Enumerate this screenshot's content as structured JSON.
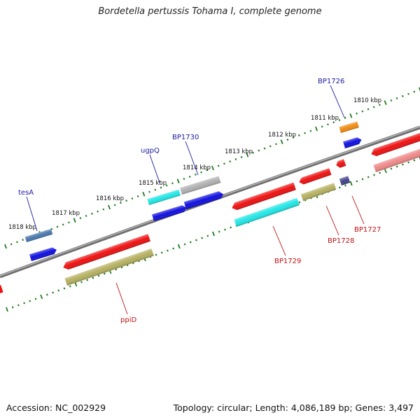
{
  "title": "Bordetella pertussis Tohama I, complete genome",
  "footer": {
    "accession": "Accession: NC_002929",
    "topology": "Topology: circular; Length: 4,086,189 bp; Genes: 3,497"
  },
  "colors": {
    "backbone": "#888888",
    "ticks": "#1a7a1a",
    "forward_label": "#1a1aa0",
    "reverse_label": "#c01010",
    "red": "#ee1111",
    "pink": "#ee8888",
    "khaki": "#b5b060",
    "cyan": "#22e5e5",
    "blue": "#1010e0",
    "steel": "#4a78b0",
    "gray": "#b0b0b0",
    "orange": "#f08c10",
    "purple": "#44448a"
  },
  "kbp_labels": [
    "1818 kbp",
    "1817 kbp",
    "1816 kbp",
    "1815 kbp",
    "1814 kbp",
    "1813 kbp",
    "1812 kbp",
    "1811 kbp",
    "1810 kbp"
  ],
  "gene_labels": {
    "forward": [
      "tesA",
      "ugpQ",
      "BP1730",
      "BP1726"
    ],
    "reverse": [
      "ppiD",
      "BP1729",
      "BP1728",
      "BP1727"
    ]
  }
}
